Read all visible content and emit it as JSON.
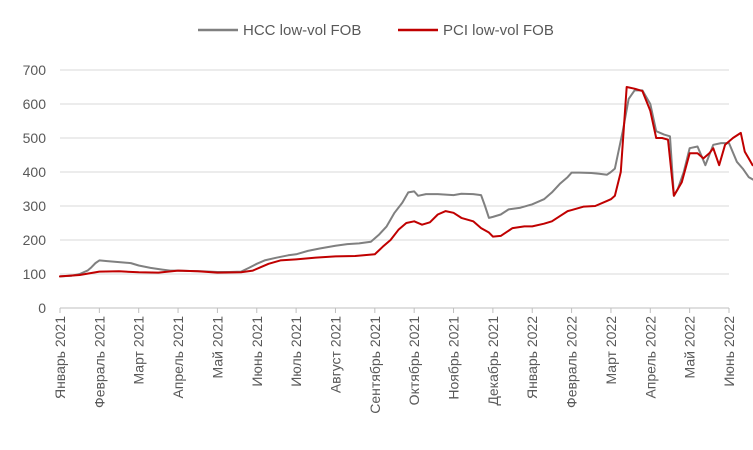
{
  "chart_data": {
    "type": "line",
    "title": "",
    "xlabel": "",
    "ylabel": "",
    "ylim": [
      0,
      700
    ],
    "yticks": [
      0,
      100,
      200,
      300,
      400,
      500,
      600,
      700
    ],
    "grid": true,
    "legend_position": "top-center",
    "x_labels": [
      "Январь 2021",
      "Февраль 2021",
      "Март 2021",
      "Апрель 2021",
      "Май 2021",
      "Июнь 2021",
      "Июль 2021",
      "Август 2021",
      "Сентябрь 2021",
      "Октябрь 2021",
      "Ноябрь 2021",
      "Декабрь 2021",
      "Январь 2022",
      "Февраль 2022",
      "Март 2022",
      "Апрель 2022",
      "Май 2022",
      "Июнь 2022"
    ],
    "x_note": "x values are months elapsed since Январь 2021 (0 = Январь 2021, 17 = Июнь 2022)",
    "series": [
      {
        "name": "HCC low-vol FOB",
        "color": "#808080",
        "points": [
          [
            0,
            93
          ],
          [
            0.3,
            95
          ],
          [
            0.5,
            100
          ],
          [
            0.7,
            110
          ],
          [
            0.8,
            120
          ],
          [
            0.9,
            132
          ],
          [
            1.0,
            140
          ],
          [
            1.2,
            138
          ],
          [
            1.5,
            135
          ],
          [
            1.8,
            132
          ],
          [
            2.0,
            125
          ],
          [
            2.3,
            118
          ],
          [
            2.6,
            113
          ],
          [
            2.8,
            110
          ],
          [
            3.0,
            110
          ],
          [
            3.3,
            109
          ],
          [
            3.6,
            108
          ],
          [
            4.0,
            106
          ],
          [
            4.3,
            106
          ],
          [
            4.6,
            107
          ],
          [
            4.8,
            118
          ],
          [
            5.0,
            130
          ],
          [
            5.2,
            140
          ],
          [
            5.5,
            148
          ],
          [
            5.8,
            155
          ],
          [
            6.0,
            158
          ],
          [
            6.3,
            168
          ],
          [
            6.6,
            175
          ],
          [
            7.0,
            183
          ],
          [
            7.3,
            188
          ],
          [
            7.6,
            190
          ],
          [
            7.9,
            195
          ],
          [
            8.1,
            215
          ],
          [
            8.3,
            240
          ],
          [
            8.5,
            280
          ],
          [
            8.7,
            310
          ],
          [
            8.85,
            340
          ],
          [
            9.0,
            343
          ],
          [
            9.1,
            330
          ],
          [
            9.3,
            335
          ],
          [
            9.6,
            335
          ],
          [
            10.0,
            332
          ],
          [
            10.2,
            336
          ],
          [
            10.5,
            335
          ],
          [
            10.7,
            332
          ],
          [
            10.8,
            300
          ],
          [
            10.9,
            265
          ],
          [
            11.0,
            268
          ],
          [
            11.2,
            275
          ],
          [
            11.4,
            290
          ],
          [
            11.7,
            295
          ],
          [
            12.0,
            305
          ],
          [
            12.3,
            320
          ],
          [
            12.5,
            340
          ],
          [
            12.7,
            365
          ],
          [
            12.9,
            385
          ],
          [
            13.0,
            398
          ],
          [
            13.2,
            398
          ],
          [
            13.5,
            397
          ],
          [
            13.7,
            395
          ],
          [
            13.9,
            392
          ],
          [
            14.0,
            400
          ],
          [
            14.1,
            410
          ],
          [
            14.3,
            520
          ],
          [
            14.45,
            615
          ],
          [
            14.6,
            640
          ],
          [
            14.8,
            640
          ],
          [
            15.0,
            600
          ],
          [
            15.15,
            520
          ],
          [
            15.35,
            510
          ],
          [
            15.5,
            505
          ],
          [
            15.6,
            330
          ],
          [
            15.7,
            350
          ],
          [
            15.85,
            400
          ],
          [
            16.0,
            470
          ],
          [
            16.2,
            475
          ],
          [
            16.4,
            420
          ],
          [
            16.6,
            480
          ],
          [
            16.8,
            485
          ],
          [
            17.0,
            485
          ],
          [
            17.2,
            430
          ],
          [
            17.35,
            410
          ],
          [
            17.5,
            385
          ],
          [
            17.65,
            375
          ],
          [
            17.75,
            340
          ]
        ]
      },
      {
        "name": "PCI low-vol FOB",
        "color": "#c00000",
        "points": [
          [
            0,
            93
          ],
          [
            0.5,
            97
          ],
          [
            1.0,
            107
          ],
          [
            1.5,
            108
          ],
          [
            2.0,
            105
          ],
          [
            2.5,
            104
          ],
          [
            3.0,
            110
          ],
          [
            3.5,
            108
          ],
          [
            4.0,
            104
          ],
          [
            4.6,
            105
          ],
          [
            4.9,
            110
          ],
          [
            5.1,
            120
          ],
          [
            5.3,
            130
          ],
          [
            5.6,
            140
          ],
          [
            6.0,
            143
          ],
          [
            6.5,
            148
          ],
          [
            7.0,
            152
          ],
          [
            7.5,
            153
          ],
          [
            8.0,
            158
          ],
          [
            8.2,
            180
          ],
          [
            8.4,
            200
          ],
          [
            8.6,
            230
          ],
          [
            8.8,
            250
          ],
          [
            9.0,
            255
          ],
          [
            9.2,
            245
          ],
          [
            9.4,
            252
          ],
          [
            9.6,
            275
          ],
          [
            9.8,
            285
          ],
          [
            10.0,
            280
          ],
          [
            10.2,
            265
          ],
          [
            10.5,
            255
          ],
          [
            10.7,
            235
          ],
          [
            10.9,
            222
          ],
          [
            11.0,
            210
          ],
          [
            11.2,
            212
          ],
          [
            11.5,
            235
          ],
          [
            11.8,
            240
          ],
          [
            12.0,
            240
          ],
          [
            12.3,
            248
          ],
          [
            12.5,
            255
          ],
          [
            12.7,
            270
          ],
          [
            12.9,
            285
          ],
          [
            13.0,
            288
          ],
          [
            13.3,
            298
          ],
          [
            13.6,
            300
          ],
          [
            13.9,
            315
          ],
          [
            14.0,
            320
          ],
          [
            14.1,
            330
          ],
          [
            14.25,
            400
          ],
          [
            14.4,
            650
          ],
          [
            14.6,
            645
          ],
          [
            14.8,
            638
          ],
          [
            15.0,
            580
          ],
          [
            15.15,
            500
          ],
          [
            15.3,
            500
          ],
          [
            15.45,
            495
          ],
          [
            15.6,
            330
          ],
          [
            15.8,
            370
          ],
          [
            16.0,
            455
          ],
          [
            16.2,
            455
          ],
          [
            16.35,
            440
          ],
          [
            16.5,
            455
          ],
          [
            16.6,
            470
          ],
          [
            16.75,
            420
          ],
          [
            16.9,
            480
          ],
          [
            17.1,
            500
          ],
          [
            17.3,
            515
          ],
          [
            17.4,
            460
          ],
          [
            17.5,
            440
          ],
          [
            17.6,
            420
          ],
          [
            17.7,
            425
          ],
          [
            17.75,
            360
          ]
        ]
      }
    ]
  }
}
